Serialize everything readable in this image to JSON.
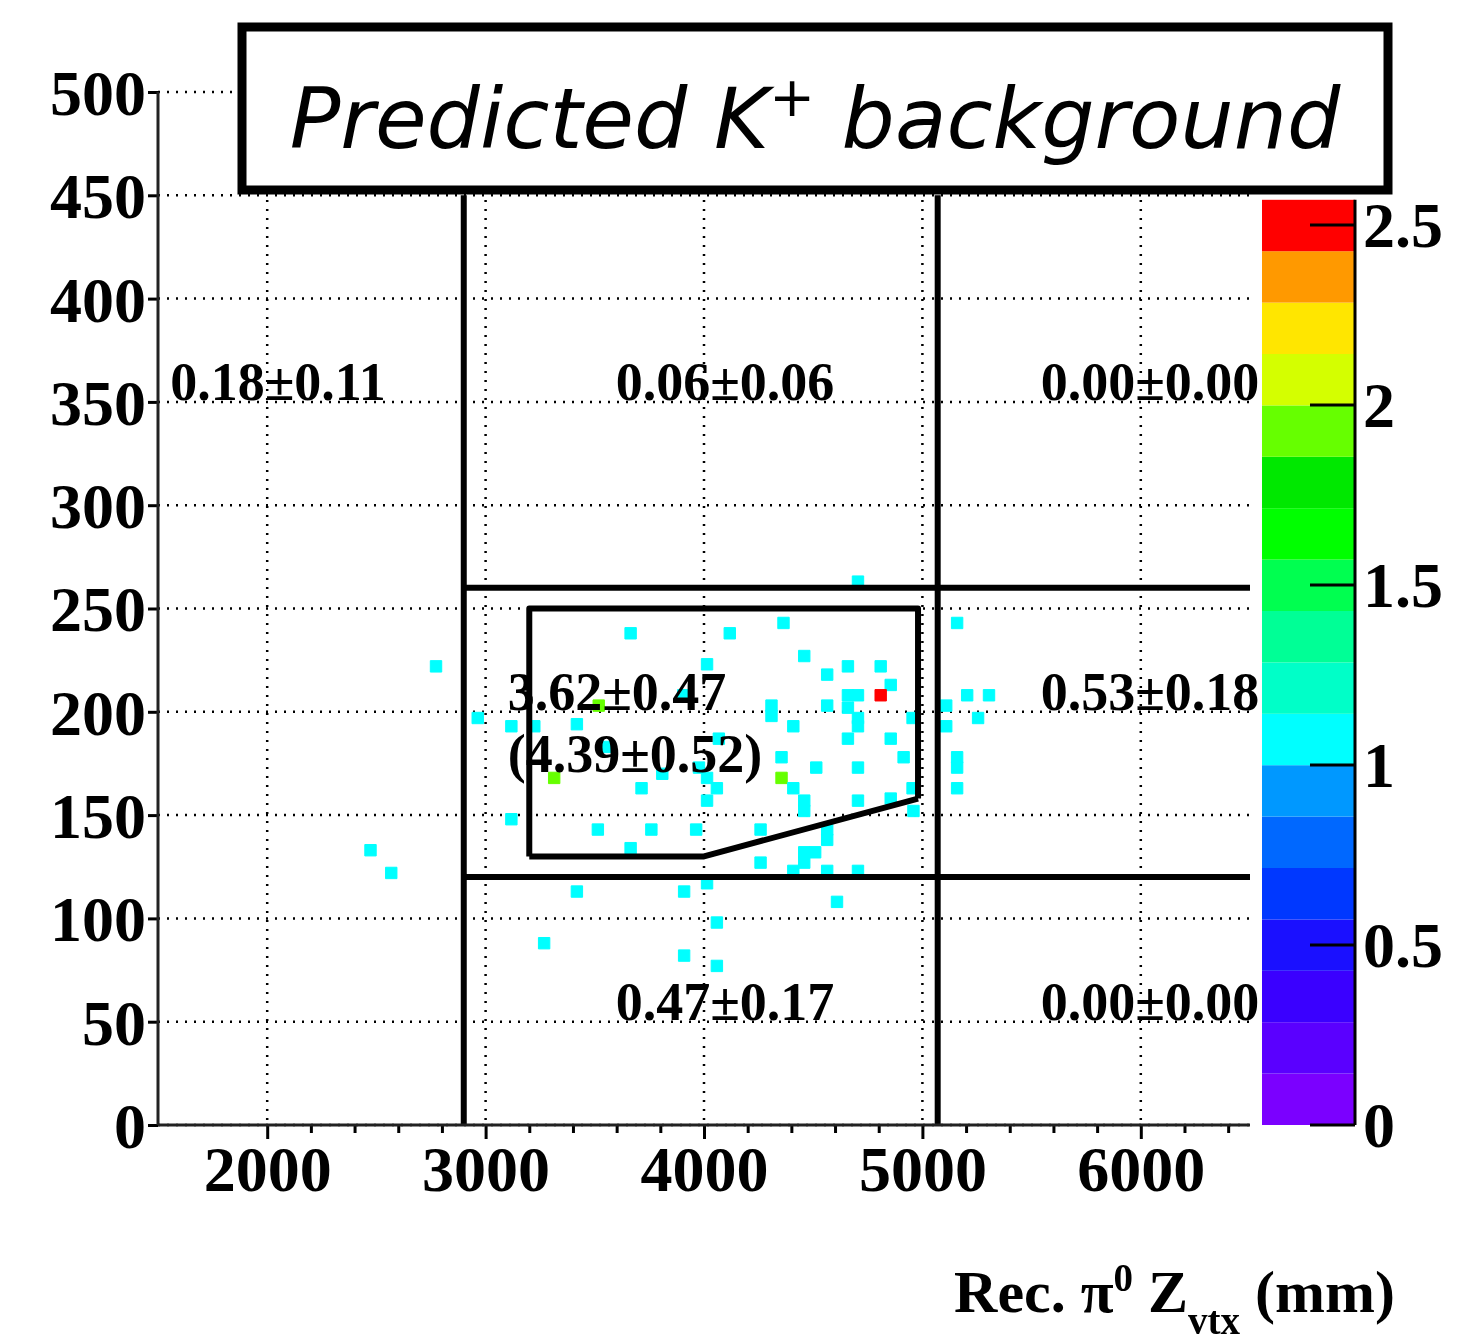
{
  "chart_data": {
    "type": "scatter",
    "title": "Predicted K$^{+}$ background",
    "xlabel": "Rec.  π$^{0}$ Z$_{vtx}$ (mm)",
    "xlim": [
      1500,
      6500
    ],
    "ylim": [
      0,
      500
    ],
    "xticks": [
      2000,
      {
        "value": 2200,
        "label": null
      },
      {
        "value": 2400,
        "label": null
      },
      {
        "value": 2600,
        "label": null
      },
      {
        "value": 2800,
        "label": null
      },
      3000,
      {
        "value": 3200,
        "label": null
      },
      {
        "value": 3400,
        "label": null
      },
      {
        "value": 3600,
        "label": null
      },
      {
        "value": 3800,
        "label": null
      },
      4000,
      {
        "value": 4200,
        "label": null
      },
      {
        "value": 4400,
        "label": null
      },
      {
        "value": 4600,
        "label": null
      },
      {
        "value": 4800,
        "label": null
      },
      5000,
      {
        "value": 5200,
        "label": null
      },
      {
        "value": 5400,
        "label": null
      },
      {
        "value": 5600,
        "label": null
      },
      {
        "value": 5800,
        "label": null
      },
      6000,
      {
        "value": 6200,
        "label": null
      },
      {
        "value": 6400,
        "label": null
      }
    ],
    "yticks": [
      0,
      50,
      100,
      150,
      200,
      250,
      300,
      350,
      400,
      450,
      500
    ],
    "grid": true,
    "line_style": "dotted",
    "clim": [
      0,
      2.57
    ],
    "cticks": [
      0,
      0.5,
      1,
      1.5,
      2,
      2.5
    ],
    "series": [
      {
        "marker": "square",
        "x": [
          2773,
          2964,
          3118,
          3223,
          3418,
          3664,
          3518,
          3314,
          3550,
          3714,
          3809,
          3118,
          3514,
          3759,
          3664,
          2473,
          2568,
          3418,
          3268,
          4705,
          4364,
          4118,
          5159,
          4459,
          4659,
          4809,
          4564,
          4855,
          4809,
          4705,
          4659,
          4014,
          3905,
          4309,
          4309,
          4564,
          4659,
          4705,
          4705,
          4955,
          5109,
          5205,
          5305,
          5255,
          5109,
          4409,
          4659,
          4855,
          4068,
          4914,
          5159,
          5159,
          4514,
          4705,
          4355,
          4355,
          3977,
          4014,
          4059,
          4014,
          4409,
          4459,
          4459,
          4705,
          4855,
          4955,
          4959,
          5159,
          3964,
          4259,
          4564,
          4564,
          4259,
          4459,
          4509,
          4459,
          4409,
          4564,
          4705,
          4014,
          3909,
          4609,
          4059,
          3909,
          4059
        ],
        "values": [
          222,
          197,
          193,
          193,
          194,
          238,
          203,
          168,
          183,
          163,
          170,
          148,
          143,
          143,
          134,
          133,
          122,
          113,
          88,
          263,
          243,
          238,
          243,
          227,
          222,
          222,
          218,
          213,
          208,
          208,
          208,
          223,
          208,
          203,
          198,
          203,
          202,
          197,
          193,
          197,
          203,
          208,
          208,
          197,
          193,
          193,
          187,
          187,
          187,
          178,
          178,
          173,
          173,
          173,
          178,
          168,
          173,
          168,
          163,
          157,
          163,
          157,
          152,
          157,
          158,
          163,
          152,
          163,
          143,
          143,
          143,
          138,
          127,
          132,
          132,
          127,
          123,
          123,
          123,
          117,
          113,
          108,
          98,
          82,
          77
        ],
        "cvalues": [
          1,
          1,
          1,
          1,
          1,
          1,
          1.9,
          1.9,
          1,
          1,
          1,
          1,
          1,
          1,
          1,
          1,
          1,
          1,
          1,
          1,
          1,
          1,
          1,
          1,
          1,
          1,
          1,
          1,
          2.5,
          1,
          1,
          1,
          1,
          1,
          1,
          1,
          1,
          1,
          1,
          1,
          1,
          1,
          1,
          1,
          1,
          1,
          1,
          1,
          1,
          1,
          1,
          1,
          1,
          1,
          1,
          1.9,
          1,
          1,
          1,
          1,
          1,
          1,
          1,
          1,
          1,
          1,
          1,
          1,
          1,
          1,
          1,
          1,
          1,
          1,
          1,
          1,
          1,
          1,
          1,
          1,
          1,
          1,
          1,
          1,
          1
        ],
        "colors": [
          "#00ffff",
          "#00ffff",
          "#00ffff",
          "#00ffff",
          "#00ffff",
          "#00ffff",
          "#66ff00",
          "#66ff00",
          "#00ffff",
          "#00ffff",
          "#00ffff",
          "#00ffff",
          "#00ffff",
          "#00ffff",
          "#00ffff",
          "#00ffff",
          "#00ffff",
          "#00ffff",
          "#00ffff",
          "#00ffff",
          "#00ffff",
          "#00ffff",
          "#00ffff",
          "#00ffff",
          "#00ffff",
          "#00ffff",
          "#00ffff",
          "#00ffff",
          "#ff0000",
          "#00ffff",
          "#00ffff",
          "#00ffff",
          "#00ffff",
          "#00ffff",
          "#00ffff",
          "#00ffff",
          "#00ffff",
          "#00ffff",
          "#00ffff",
          "#00ffff",
          "#00ffff",
          "#00ffff",
          "#00ffff",
          "#00ffff",
          "#00ffff",
          "#00ffff",
          "#00ffff",
          "#00ffff",
          "#00ffff",
          "#00ffff",
          "#00ffff",
          "#00ffff",
          "#00ffff",
          "#00ffff",
          "#00ffff",
          "#66ff00",
          "#00ffff",
          "#00ffff",
          "#00ffff",
          "#00ffff",
          "#00ffff",
          "#00ffff",
          "#00ffff",
          "#00ffff",
          "#00ffff",
          "#00ffff",
          "#00ffff",
          "#00ffff",
          "#00ffff",
          "#00ffff",
          "#00ffff",
          "#00ffff",
          "#00ffff",
          "#00ffff",
          "#00ffff",
          "#00ffff",
          "#00ffff",
          "#00ffff",
          "#00ffff",
          "#00ffff",
          "#00ffff",
          "#00ffff",
          "#00ffff",
          "#00ffff",
          "#00ffff"
        ]
      },
      {
        "type": "line",
        "marker": "none",
        "color": "#000000",
        "line_style": "solid",
        "x": [
          2900,
          2900
        ],
        "values": [
          0,
          450
        ]
      },
      {
        "type": "line",
        "marker": "none",
        "color": "#000000",
        "line_style": "solid",
        "x": [
          5070,
          5070
        ],
        "values": [
          0,
          450
        ]
      },
      {
        "type": "line",
        "marker": "none",
        "color": "#000000",
        "line_style": "solid",
        "x": [
          2900,
          6500
        ],
        "values": [
          260,
          260
        ]
      },
      {
        "type": "line",
        "marker": "none",
        "color": "#000000",
        "line_style": "solid",
        "x": [
          2900,
          6500
        ],
        "values": [
          120,
          120
        ]
      },
      {
        "type": "line",
        "marker": "none",
        "color": "#000000",
        "line_style": "solid",
        "x": [
          3200,
          3200,
          4980,
          4980
        ],
        "values": [
          130,
          250,
          250,
          158
        ]
      },
      {
        "type": "line",
        "marker": "none",
        "color": "#000000",
        "line_style": "solid",
        "x": [
          3200,
          4000,
          4980
        ],
        "values": [
          130,
          130,
          158
        ]
      }
    ],
    "annotations": [
      "0.18±0.11",
      "0.06±0.06",
      "0.00±0.00",
      "3.62±0.47",
      "(4.39±0.52)",
      "0.53±0.18",
      "0.47±0.17",
      "0.00±0.00"
    ]
  }
}
